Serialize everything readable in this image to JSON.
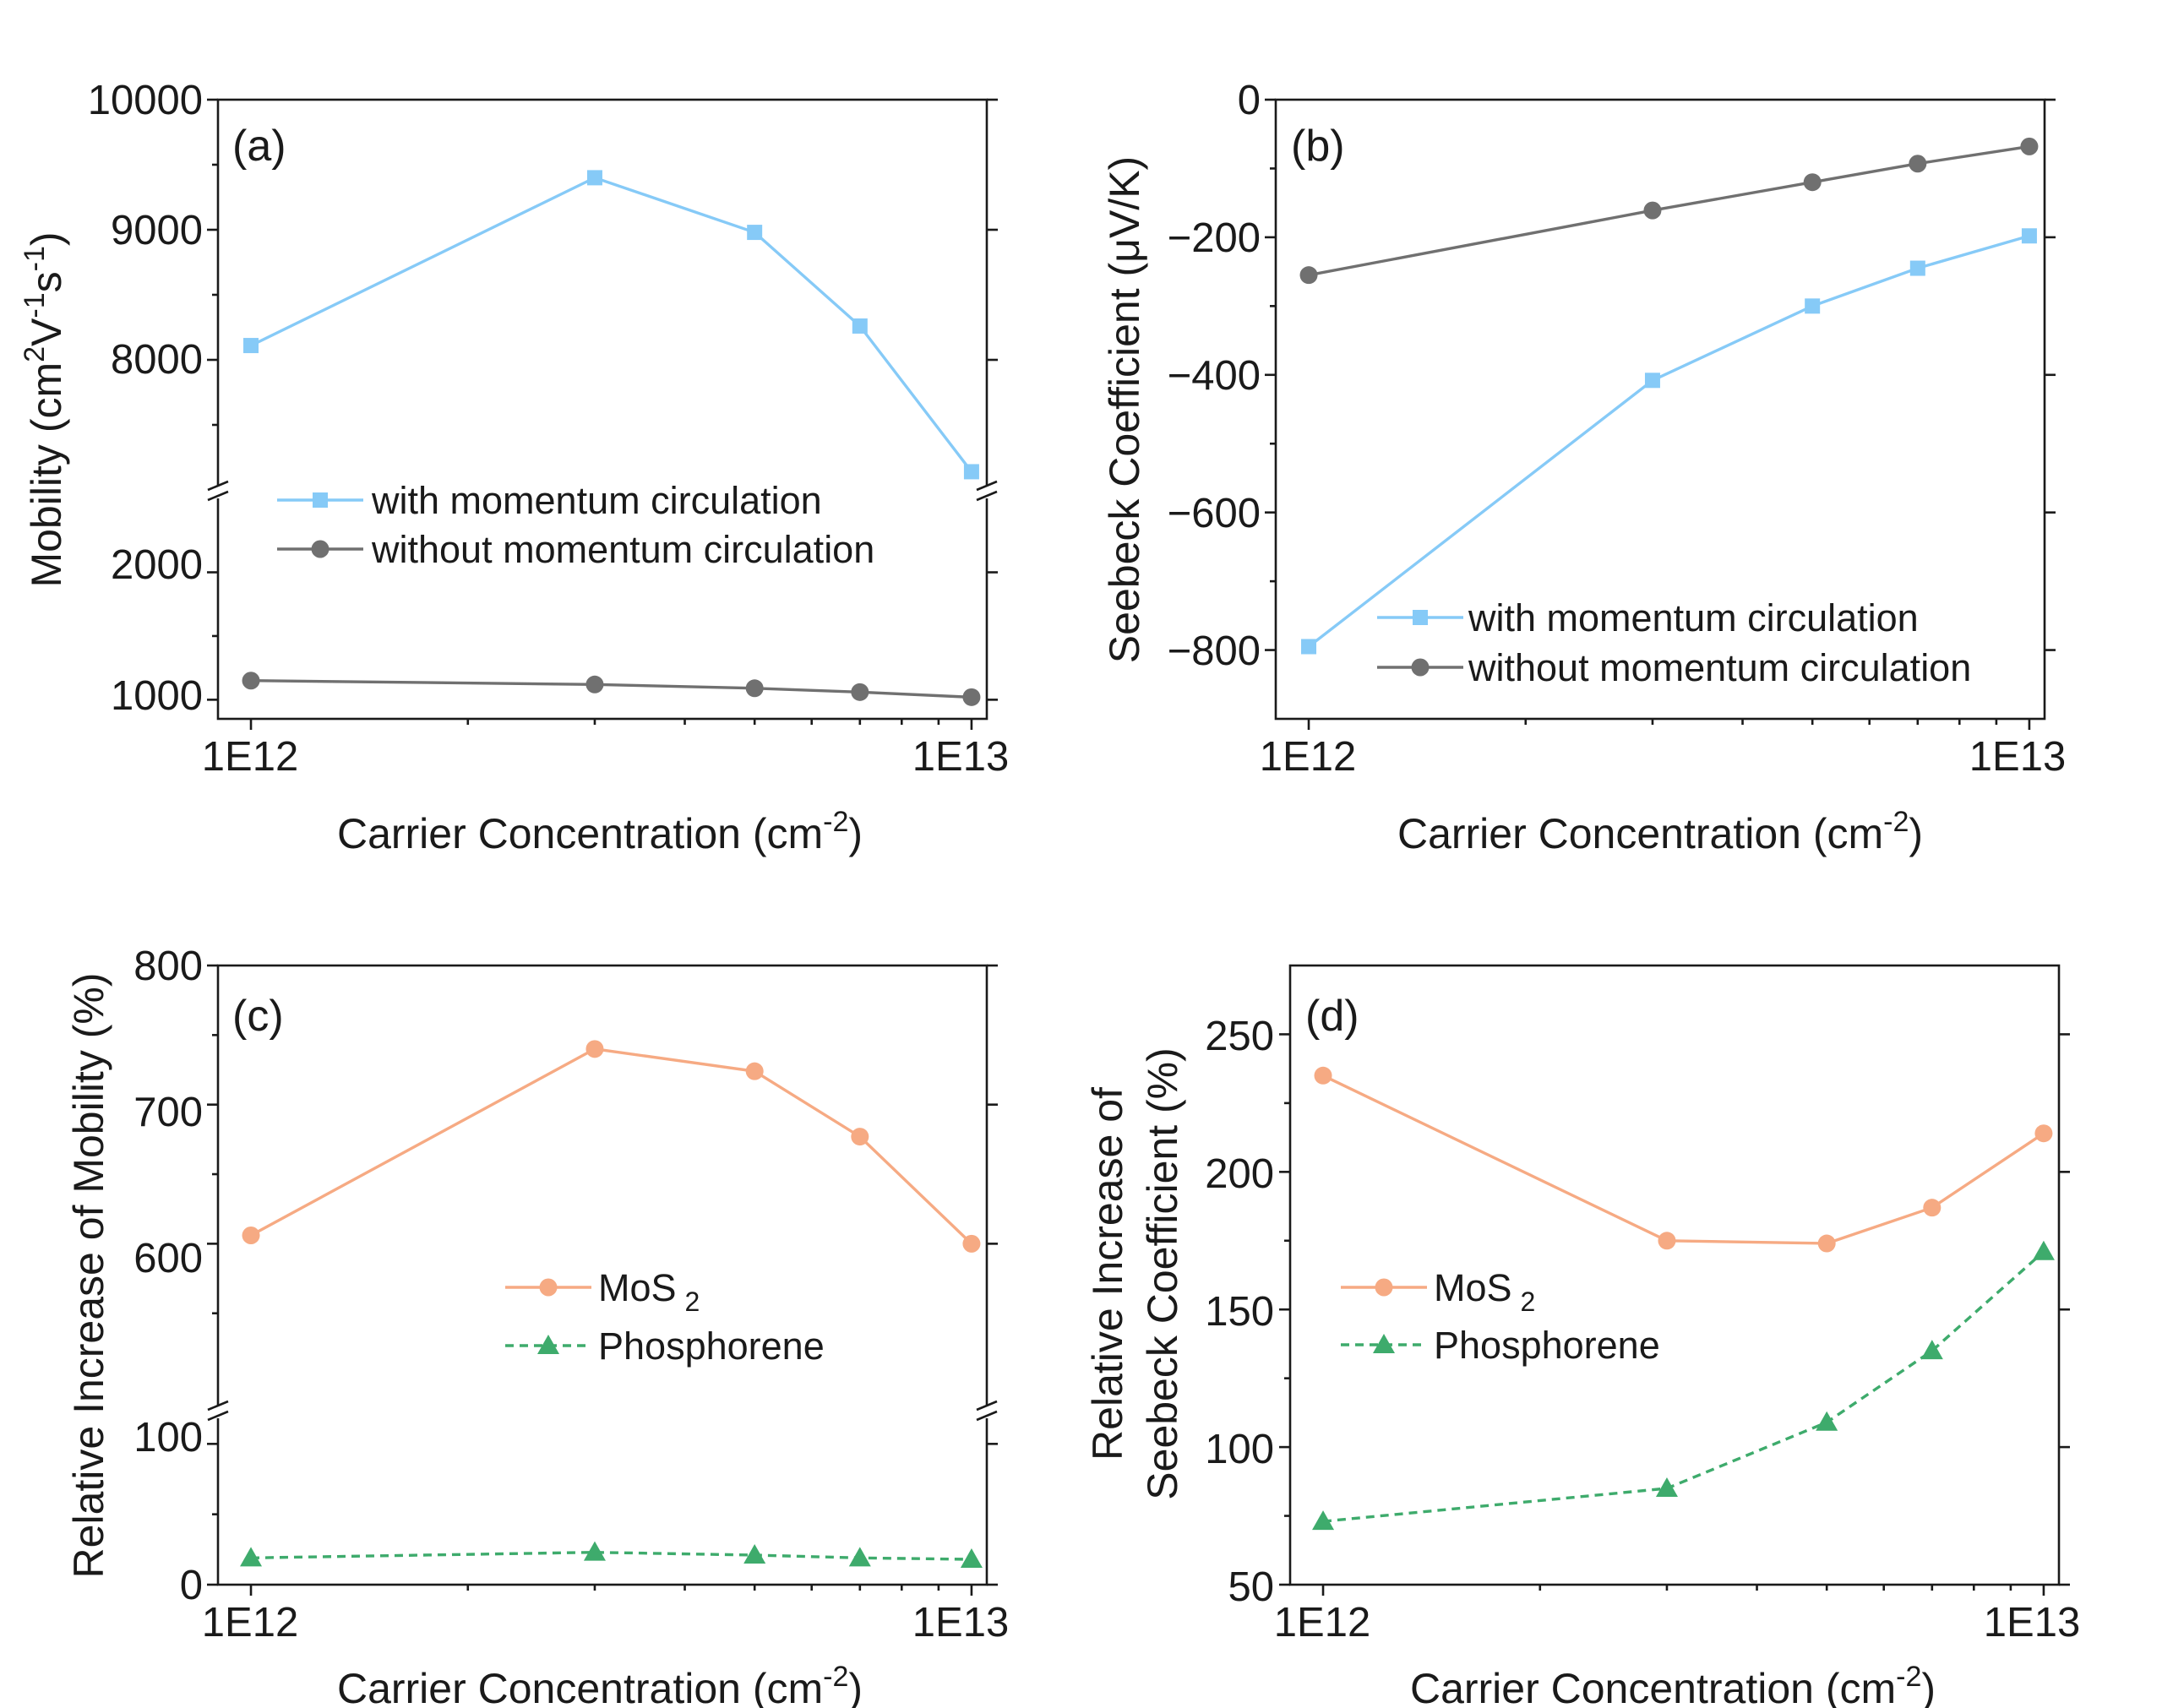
{
  "colors": {
    "with_momentum": "#86CAF7",
    "without_momentum": "#707070",
    "mos2": "#F6AA83",
    "phosphorene": "#3EAB6C"
  },
  "chart_data": [
    {
      "type": "line",
      "panel_label": "(a)",
      "xlabel": "Carrier Concentration (cm",
      "xlabel_sup": "-2",
      "xlabel_end": ")",
      "ylabel_parts": [
        "Mobility (cm",
        "2",
        "V",
        "-1",
        "s",
        "-1",
        ")"
      ],
      "x_scale": "log",
      "xlim": [
        900000000000.0,
        10500000000000.0
      ],
      "x_ticks": [
        "1E12",
        "1E13"
      ],
      "y_broken": true,
      "y_upper_range": [
        7000,
        10000
      ],
      "y_lower_range": [
        850,
        2600
      ],
      "y_ticks_upper": [
        "10000",
        "9000",
        "8000"
      ],
      "y_ticks_lower": [
        "2000",
        "1000"
      ],
      "legend_position": "center-left",
      "series": [
        {
          "name": "with momentum circulation",
          "marker": "square",
          "line": "solid",
          "x": [
            1000000000000.0,
            3000000000000.0,
            5000000000000.0,
            7000000000000.0,
            10000000000000.0
          ],
          "y": [
            8110,
            9400,
            8980,
            8260,
            7140
          ]
        },
        {
          "name": "without momentum circulation",
          "marker": "circle",
          "line": "solid",
          "x": [
            1000000000000.0,
            3000000000000.0,
            5000000000000.0,
            7000000000000.0,
            10000000000000.0
          ],
          "y": [
            1150,
            1120,
            1090,
            1060,
            1020
          ]
        }
      ]
    },
    {
      "type": "line",
      "panel_label": "(b)",
      "xlabel": "Carrier Concentration (cm",
      "xlabel_sup": "-2",
      "xlabel_end": ")",
      "ylabel_parts": [
        "Seebeck Coefficient (μV/K)"
      ],
      "x_scale": "log",
      "xlim": [
        900000000000.0,
        10500000000000.0
      ],
      "x_ticks": [
        "1E12",
        "1E13"
      ],
      "ylim": [
        -900,
        0
      ],
      "y_ticks": [
        "0",
        "−200",
        "−400",
        "−600",
        "−800"
      ],
      "legend_position": "bottom-center",
      "series": [
        {
          "name": "with momentum circulation",
          "marker": "square",
          "line": "solid",
          "x": [
            1000000000000.0,
            3000000000000.0,
            5000000000000.0,
            7000000000000.0,
            10000000000000.0
          ],
          "y": [
            -795,
            -408,
            -300,
            -245,
            -198
          ]
        },
        {
          "name": "without momentum circulation",
          "marker": "circle",
          "line": "solid",
          "x": [
            1000000000000.0,
            3000000000000.0,
            5000000000000.0,
            7000000000000.0,
            10000000000000.0
          ],
          "y": [
            -255,
            -161,
            -120,
            -93,
            -68
          ]
        }
      ]
    },
    {
      "type": "line",
      "panel_label": "(c)",
      "xlabel": "Carrier Concentration (cm",
      "xlabel_sup": "-2",
      "xlabel_end": ")",
      "ylabel_parts": [
        "Relative Increase of Mobility (%)"
      ],
      "x_scale": "log",
      "xlim": [
        900000000000.0,
        10500000000000.0
      ],
      "x_ticks": [
        "1E12",
        "1E13"
      ],
      "y_broken": true,
      "y_upper_range": [
        480,
        800
      ],
      "y_lower_range": [
        0,
        120
      ],
      "y_ticks_upper": [
        "800",
        "700",
        "600"
      ],
      "y_ticks_lower": [
        "100",
        "0"
      ],
      "legend_position": "center",
      "series": [
        {
          "name": "MoS",
          "name_sub": "2",
          "marker": "circle",
          "line": "solid",
          "x": [
            1000000000000.0,
            3000000000000.0,
            5000000000000.0,
            7000000000000.0,
            10000000000000.0
          ],
          "y": [
            606,
            740,
            724,
            677,
            600
          ]
        },
        {
          "name": "Phosphorene",
          "marker": "triangle",
          "line": "dashed",
          "x": [
            1000000000000.0,
            3000000000000.0,
            5000000000000.0,
            7000000000000.0,
            10000000000000.0
          ],
          "y": [
            19,
            23,
            21,
            19,
            18
          ]
        }
      ]
    },
    {
      "type": "line",
      "panel_label": "(d)",
      "xlabel": "Carrier Concentration (cm",
      "xlabel_sup": "-2",
      "xlabel_end": ")",
      "ylabel_parts": [
        "Relative Increase of",
        "Seebeck Coefficient (%)"
      ],
      "x_scale": "log",
      "xlim": [
        900000000000.0,
        10500000000000.0
      ],
      "x_ticks": [
        "1E12",
        "1E13"
      ],
      "ylim": [
        50,
        275
      ],
      "y_ticks": [
        "250",
        "200",
        "150",
        "100",
        "50"
      ],
      "legend_position": "center-left",
      "series": [
        {
          "name": "MoS",
          "name_sub": "2",
          "marker": "circle",
          "line": "solid",
          "x": [
            1000000000000.0,
            3000000000000.0,
            5000000000000.0,
            7000000000000.0,
            10000000000000.0
          ],
          "y": [
            235,
            175,
            174,
            187,
            214
          ]
        },
        {
          "name": "Phosphorene",
          "marker": "triangle",
          "line": "dashed",
          "x": [
            1000000000000.0,
            3000000000000.0,
            5000000000000.0,
            7000000000000.0,
            10000000000000.0
          ],
          "y": [
            73,
            85,
            109,
            135,
            171
          ]
        }
      ]
    }
  ]
}
